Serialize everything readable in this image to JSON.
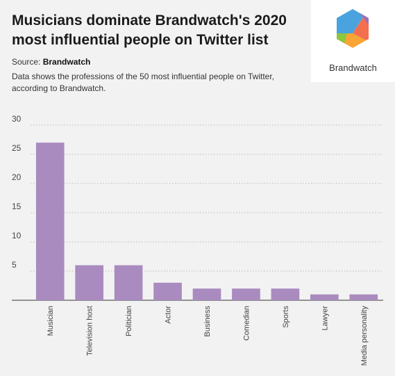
{
  "header": {
    "title": "Musicians dominate Brandwatch's 2020 most influential people on Twitter list",
    "source_prefix": "Source: ",
    "source_name": "Brandwatch",
    "description": "Data shows the professions of the 50 most influential people on Twitter, according to Brandwatch."
  },
  "logo": {
    "text": "Brandwatch",
    "colors": [
      "#4aa3df",
      "#f36f4e",
      "#f7a534",
      "#9d6fb5",
      "#8dc63f"
    ]
  },
  "chart_data": {
    "type": "bar",
    "title": "",
    "xlabel": "",
    "ylabel": "",
    "categories": [
      "Musician",
      "Television host",
      "Politician",
      "Actor",
      "Business",
      "Comedian",
      "Sports",
      "Lawyer",
      "Media personality"
    ],
    "values": [
      27,
      6,
      6,
      3,
      2,
      2,
      2,
      1,
      1
    ],
    "ylim": [
      0,
      30
    ],
    "yticks": [
      5,
      10,
      15,
      20,
      25,
      30
    ],
    "grid": true,
    "bar_color": "#a98bbf"
  }
}
